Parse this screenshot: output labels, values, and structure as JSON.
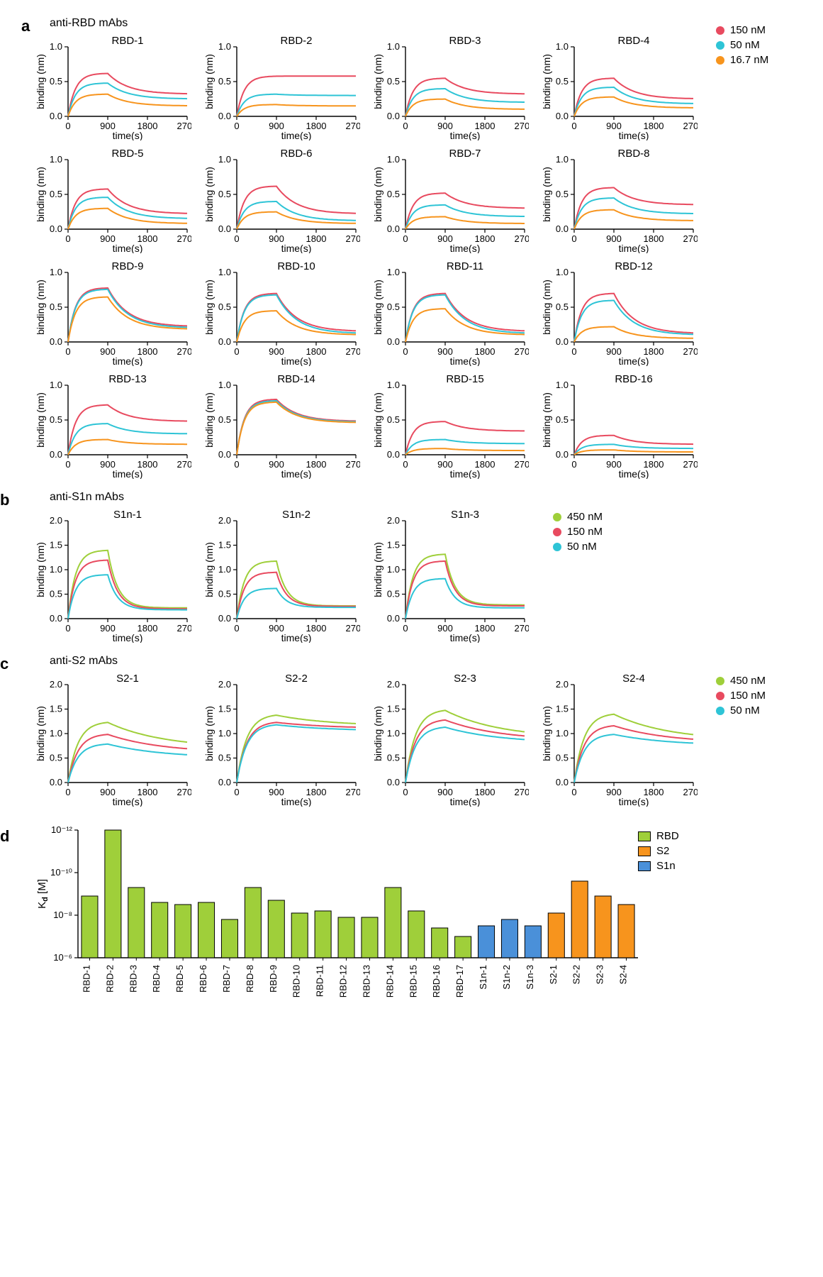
{
  "colors": {
    "c150": "#e84a5f",
    "c50": "#2ec4d6",
    "c16": "#f7941d",
    "c450": "#9fcf3a",
    "rbd_bar": "#9fcf3a",
    "s2_bar": "#f7941d",
    "s1n_bar": "#4a90d9",
    "axis": "#000000"
  },
  "labels": {
    "panel_a": "a",
    "panel_b": "b",
    "panel_c": "c",
    "panel_d": "d",
    "title_a": "anti-RBD mAbs",
    "title_b": "anti-S1n mAbs",
    "title_c": "anti-S2 mAbs",
    "ylab_bind": "binding (nm)",
    "xlab_time": "time(s)",
    "ylab_kd": "Kₔ [M]"
  },
  "legend_a": [
    {
      "label": "150 nM",
      "colorKey": "c150"
    },
    {
      "label": "50 nM",
      "colorKey": "c50"
    },
    {
      "label": "16.7 nM",
      "colorKey": "c16"
    }
  ],
  "legend_bc": [
    {
      "label": "450 nM",
      "colorKey": "c450"
    },
    {
      "label": "150 nM",
      "colorKey": "c150"
    },
    {
      "label": "50 nM",
      "colorKey": "c50"
    }
  ],
  "legend_d": [
    {
      "label": "RBD",
      "colorKey": "rbd_bar"
    },
    {
      "label": "S2",
      "colorKey": "s2_bar"
    },
    {
      "label": "S1n",
      "colorKey": "s1n_bar"
    }
  ],
  "axis_a": {
    "x_ticks": [
      0,
      900,
      1800,
      2700
    ],
    "y_ticks": [
      0.0,
      0.5,
      1.0
    ],
    "y_tick_labels": [
      "0.0",
      "0.5",
      "1.0"
    ],
    "xlim": [
      0,
      2700
    ],
    "ylim": [
      0,
      1.0
    ]
  },
  "axis_bc": {
    "x_ticks": [
      0,
      900,
      1800,
      2700
    ],
    "y_ticks": [
      0.0,
      0.5,
      1.0,
      1.5,
      2.0
    ],
    "y_tick_labels": [
      "0.0",
      "0.5",
      "1.0",
      "1.5",
      "2.0"
    ],
    "xlim": [
      0,
      2700
    ],
    "ylim": [
      0,
      2.0
    ]
  },
  "axis_d": {
    "y_ticks_exp": [
      -12,
      -10,
      -8,
      -6
    ],
    "y_tick_labels": [
      "10⁻¹²",
      "10⁻¹⁰",
      "10⁻⁸",
      "10⁻⁶"
    ]
  },
  "panelsA": [
    {
      "title": "RBD-1",
      "peaks": [
        0.62,
        0.48,
        0.32
      ],
      "plateau": [
        0.32,
        0.25,
        0.15
      ]
    },
    {
      "title": "RBD-2",
      "peaks": [
        0.58,
        0.32,
        0.17
      ],
      "plateau": [
        0.58,
        0.3,
        0.15
      ]
    },
    {
      "title": "RBD-3",
      "peaks": [
        0.55,
        0.4,
        0.25
      ],
      "plateau": [
        0.32,
        0.2,
        0.1
      ]
    },
    {
      "title": "RBD-4",
      "peaks": [
        0.55,
        0.42,
        0.28
      ],
      "plateau": [
        0.25,
        0.18,
        0.12
      ]
    },
    {
      "title": "RBD-5",
      "peaks": [
        0.58,
        0.46,
        0.3
      ],
      "plateau": [
        0.22,
        0.15,
        0.08
      ]
    },
    {
      "title": "RBD-6",
      "peaks": [
        0.62,
        0.4,
        0.25
      ],
      "plateau": [
        0.22,
        0.12,
        0.08
      ]
    },
    {
      "title": "RBD-7",
      "peaks": [
        0.52,
        0.35,
        0.18
      ],
      "plateau": [
        0.3,
        0.18,
        0.08
      ]
    },
    {
      "title": "RBD-8",
      "peaks": [
        0.6,
        0.45,
        0.28
      ],
      "plateau": [
        0.35,
        0.22,
        0.12
      ]
    },
    {
      "title": "RBD-9",
      "peaks": [
        0.78,
        0.76,
        0.65
      ],
      "plateau": [
        0.22,
        0.2,
        0.18
      ]
    },
    {
      "title": "RBD-10",
      "peaks": [
        0.7,
        0.68,
        0.45
      ],
      "plateau": [
        0.15,
        0.12,
        0.1
      ]
    },
    {
      "title": "RBD-11",
      "peaks": [
        0.7,
        0.68,
        0.48
      ],
      "plateau": [
        0.15,
        0.12,
        0.1
      ]
    },
    {
      "title": "RBD-12",
      "peaks": [
        0.7,
        0.6,
        0.22
      ],
      "plateau": [
        0.12,
        0.1,
        0.05
      ]
    },
    {
      "title": "RBD-13",
      "peaks": [
        0.72,
        0.45,
        0.22
      ],
      "plateau": [
        0.48,
        0.3,
        0.15
      ]
    },
    {
      "title": "RBD-14",
      "peaks": [
        0.8,
        0.78,
        0.76
      ],
      "plateau": [
        0.48,
        0.47,
        0.46
      ]
    },
    {
      "title": "RBD-15",
      "peaks": [
        0.48,
        0.22,
        0.09
      ],
      "plateau": [
        0.34,
        0.16,
        0.06
      ]
    },
    {
      "title": "RBD-16",
      "peaks": [
        0.28,
        0.15,
        0.07
      ],
      "plateau": [
        0.15,
        0.09,
        0.04
      ]
    }
  ],
  "panelsB": [
    {
      "title": "S1n-1",
      "peaks": [
        1.4,
        1.2,
        0.9
      ],
      "plateau": [
        0.22,
        0.2,
        0.18
      ]
    },
    {
      "title": "S1n-2",
      "peaks": [
        1.18,
        0.95,
        0.62
      ],
      "plateau": [
        0.26,
        0.25,
        0.23
      ]
    },
    {
      "title": "S1n-3",
      "peaks": [
        1.32,
        1.18,
        0.82
      ],
      "plateau": [
        0.28,
        0.26,
        0.22
      ]
    }
  ],
  "panelsC": [
    {
      "title": "S2-1",
      "peaks": [
        1.25,
        1.0,
        0.8
      ],
      "plateau": [
        0.7,
        0.6,
        0.5
      ]
    },
    {
      "title": "S2-2",
      "peaks": [
        1.4,
        1.25,
        1.2
      ],
      "plateau": [
        1.15,
        1.1,
        1.05
      ]
    },
    {
      "title": "S2-3",
      "peaks": [
        1.5,
        1.3,
        1.15
      ],
      "plateau": [
        0.9,
        0.85,
        0.8
      ]
    },
    {
      "title": "S2-4",
      "peaks": [
        1.42,
        1.18,
        1.0
      ],
      "plateau": [
        0.85,
        0.8,
        0.75
      ]
    }
  ],
  "panelD": {
    "bars": [
      {
        "label": "RBD-1",
        "kd_exp": -8.9,
        "group": "rbd_bar"
      },
      {
        "label": "RBD-2",
        "kd_exp": -12.0,
        "group": "rbd_bar"
      },
      {
        "label": "RBD-3",
        "kd_exp": -9.3,
        "group": "rbd_bar"
      },
      {
        "label": "RBD-4",
        "kd_exp": -8.6,
        "group": "rbd_bar"
      },
      {
        "label": "RBD-5",
        "kd_exp": -8.5,
        "group": "rbd_bar"
      },
      {
        "label": "RBD-6",
        "kd_exp": -8.6,
        "group": "rbd_bar"
      },
      {
        "label": "RBD-7",
        "kd_exp": -7.8,
        "group": "rbd_bar"
      },
      {
        "label": "RBD-8",
        "kd_exp": -9.3,
        "group": "rbd_bar"
      },
      {
        "label": "RBD-9",
        "kd_exp": -8.7,
        "group": "rbd_bar"
      },
      {
        "label": "RBD-10",
        "kd_exp": -8.1,
        "group": "rbd_bar"
      },
      {
        "label": "RBD-11",
        "kd_exp": -8.2,
        "group": "rbd_bar"
      },
      {
        "label": "RBD-12",
        "kd_exp": -7.9,
        "group": "rbd_bar"
      },
      {
        "label": "RBD-13",
        "kd_exp": -7.9,
        "group": "rbd_bar"
      },
      {
        "label": "RBD-14",
        "kd_exp": -9.3,
        "group": "rbd_bar"
      },
      {
        "label": "RBD-15",
        "kd_exp": -8.2,
        "group": "rbd_bar"
      },
      {
        "label": "RBD-16",
        "kd_exp": -7.4,
        "group": "rbd_bar"
      },
      {
        "label": "RBD-17",
        "kd_exp": -7.0,
        "group": "rbd_bar"
      },
      {
        "label": "S1n-1",
        "kd_exp": -7.5,
        "group": "s1n_bar"
      },
      {
        "label": "S1n-2",
        "kd_exp": -7.8,
        "group": "s1n_bar"
      },
      {
        "label": "S1n-3",
        "kd_exp": -7.5,
        "group": "s1n_bar"
      },
      {
        "label": "S2-1",
        "kd_exp": -8.1,
        "group": "s2_bar"
      },
      {
        "label": "S2-2",
        "kd_exp": -9.6,
        "group": "s2_bar"
      },
      {
        "label": "S2-3",
        "kd_exp": -8.9,
        "group": "s2_bar"
      },
      {
        "label": "S2-4",
        "kd_exp": -8.5,
        "group": "s2_bar"
      }
    ]
  }
}
